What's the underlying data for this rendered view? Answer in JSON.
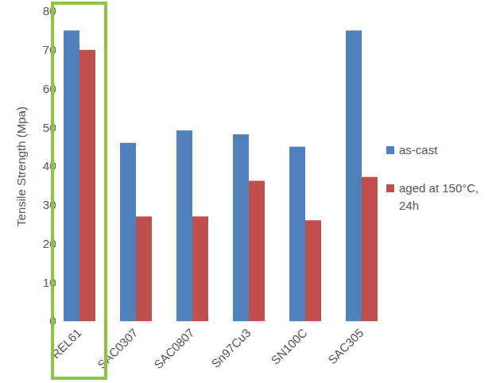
{
  "chart_data": {
    "type": "bar",
    "categories": [
      "REL61",
      "SAC0307",
      "SAC0807",
      "Sn97Cu3",
      "SN100C",
      "SAC305"
    ],
    "series": [
      {
        "name": "as-cast",
        "color": "#4f81bd",
        "values": [
          75,
          46,
          49.2,
          48.2,
          45,
          75
        ]
      },
      {
        "name": "aged at 150°C, 24h",
        "color": "#c0504d",
        "values": [
          70,
          27,
          27,
          36.2,
          26,
          37.2
        ]
      }
    ],
    "y_label": "Tensile Strength (Mpa)",
    "ylim": [
      0,
      80
    ],
    "yticks": [
      0,
      10,
      20,
      30,
      40,
      50,
      60,
      70,
      80
    ],
    "grid": false,
    "legend": "right"
  }
}
